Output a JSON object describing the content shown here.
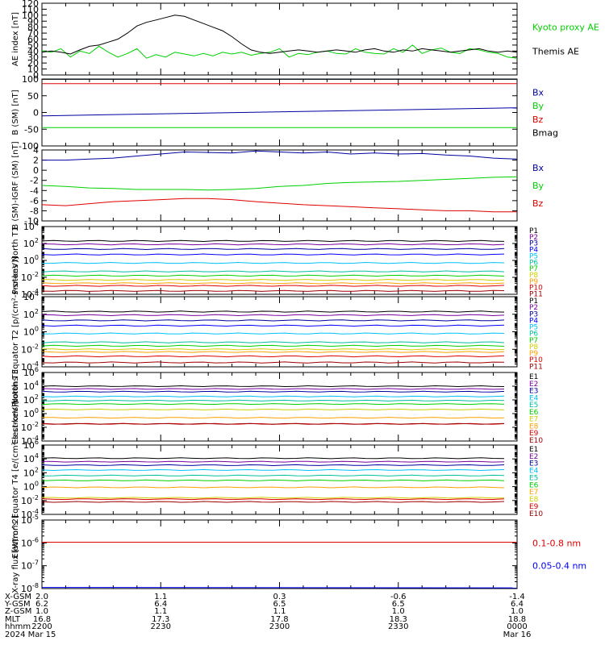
{
  "colors": {
    "black": "#000000",
    "navy": "#0000a0",
    "purple": "#7a00a0",
    "blue": "#0000ff",
    "cyan": "#00c0ff",
    "teal": "#00c0a0",
    "green": "#00d000",
    "yellow": "#d0d000",
    "orange": "#ffa000",
    "red": "#e00000",
    "darkred": "#a00000"
  },
  "chart_data": [
    {
      "type": "line",
      "panel": "ae",
      "ylabel": "AE index [nT]",
      "ylim": [
        0,
        120
      ],
      "yticks": [
        0,
        10,
        20,
        30,
        40,
        50,
        60,
        70,
        80,
        90,
        100,
        110,
        120
      ],
      "series": [
        {
          "name": "Kyoto proxy AE",
          "color": "green",
          "x": [
            0,
            2,
            4,
            6,
            8,
            10,
            12,
            14,
            16,
            18,
            20,
            22,
            24,
            26,
            28,
            30,
            32,
            34,
            36,
            38,
            40,
            42,
            44,
            46,
            48,
            50,
            52,
            54,
            56,
            58,
            60,
            62,
            64,
            66,
            68,
            70,
            72,
            74,
            76,
            78,
            80,
            82,
            84,
            86,
            88,
            90,
            92,
            94,
            96,
            98,
            100
          ],
          "values": [
            40,
            38,
            44,
            30,
            40,
            36,
            48,
            38,
            30,
            36,
            44,
            28,
            34,
            30,
            38,
            35,
            32,
            36,
            32,
            38,
            35,
            38,
            33,
            36,
            38,
            44,
            30,
            36,
            34,
            38,
            40,
            36,
            35,
            44,
            38,
            36,
            35,
            44,
            38,
            50,
            36,
            42,
            45,
            38,
            36,
            44,
            42,
            38,
            36,
            30,
            28
          ]
        },
        {
          "name": "Themis AE",
          "color": "black",
          "x": [
            0,
            2,
            4,
            6,
            8,
            10,
            12,
            14,
            16,
            18,
            20,
            22,
            24,
            26,
            28,
            30,
            32,
            34,
            36,
            38,
            40,
            42,
            44,
            46,
            48,
            50,
            52,
            54,
            56,
            58,
            60,
            62,
            64,
            66,
            68,
            70,
            72,
            74,
            76,
            78,
            80,
            82,
            84,
            86,
            88,
            90,
            92,
            94,
            96,
            98,
            100
          ],
          "values": [
            38,
            40,
            38,
            35,
            42,
            48,
            50,
            55,
            60,
            70,
            82,
            88,
            92,
            96,
            100,
            98,
            92,
            86,
            80,
            74,
            64,
            52,
            42,
            38,
            36,
            38,
            40,
            42,
            40,
            38,
            40,
            42,
            40,
            38,
            42,
            44,
            40,
            38,
            42,
            40,
            44,
            42,
            40,
            38,
            40,
            42,
            44,
            40,
            38,
            40,
            38
          ]
        }
      ],
      "legend": [
        "Kyoto proxy AE",
        "Themis AE"
      ]
    },
    {
      "type": "line",
      "panel": "bsm",
      "ylabel": "B (SM) [nT]",
      "ylim": [
        -100,
        100
      ],
      "yticks": [
        -100,
        -50,
        0,
        50,
        100
      ],
      "series": [
        {
          "name": "Bx",
          "color": "navy",
          "x": [
            0,
            100
          ],
          "values": [
            -10,
            14
          ]
        },
        {
          "name": "By",
          "color": "green",
          "x": [
            0,
            100
          ],
          "values": [
            -45,
            -45
          ]
        },
        {
          "name": "Bz",
          "color": "red",
          "x": [
            0,
            100
          ],
          "values": [
            86,
            86
          ]
        },
        {
          "name": "Bmag",
          "color": "black",
          "x": [
            0,
            100
          ],
          "values": [
            99,
            99
          ]
        }
      ],
      "legend": [
        "Bx",
        "By",
        "Bz",
        "Bmag"
      ]
    },
    {
      "type": "line",
      "panel": "bigrf",
      "ylabel": "B (SM)-IGRF (SM) [nT]",
      "ylim": [
        -10,
        4
      ],
      "yticks": [
        -10,
        -8,
        -6,
        -4,
        -2,
        0,
        2,
        4
      ],
      "series": [
        {
          "name": "Bx",
          "color": "navy",
          "x": [
            0,
            5,
            10,
            15,
            20,
            25,
            30,
            35,
            40,
            45,
            50,
            55,
            60,
            65,
            70,
            75,
            80,
            85,
            90,
            95,
            100
          ],
          "values": [
            2,
            2,
            2.2,
            2.4,
            2.8,
            3.2,
            3.6,
            3.5,
            3.4,
            3.8,
            3.6,
            3.4,
            3.6,
            3.2,
            3.4,
            3.2,
            3.3,
            3.0,
            2.8,
            2.4,
            2.2
          ]
        },
        {
          "name": "By",
          "color": "green",
          "x": [
            0,
            5,
            10,
            15,
            20,
            25,
            30,
            35,
            40,
            45,
            50,
            55,
            60,
            65,
            70,
            75,
            80,
            85,
            90,
            95,
            100
          ],
          "values": [
            -3,
            -3.2,
            -3.5,
            -3.6,
            -3.8,
            -3.8,
            -3.8,
            -3.9,
            -3.8,
            -3.6,
            -3.2,
            -3,
            -2.6,
            -2.4,
            -2.3,
            -2.2,
            -2,
            -1.8,
            -1.6,
            -1.4,
            -1.3
          ]
        },
        {
          "name": "Bz",
          "color": "red",
          "x": [
            0,
            5,
            10,
            15,
            20,
            25,
            30,
            35,
            40,
            45,
            50,
            55,
            60,
            65,
            70,
            75,
            80,
            85,
            90,
            95,
            100
          ],
          "values": [
            -6.8,
            -7,
            -6.6,
            -6.2,
            -6,
            -5.8,
            -5.6,
            -5.6,
            -5.8,
            -6.2,
            -6.5,
            -6.8,
            -7,
            -7.2,
            -7.4,
            -7.6,
            -7.8,
            -8,
            -8,
            -8.2,
            -8.2
          ]
        }
      ],
      "legend": [
        "Bx",
        "By",
        "Bz"
      ]
    },
    {
      "type": "line",
      "panel": "p_north",
      "scale": "log",
      "ylabel": "Protons North T1",
      "ylim_exp": [
        -4,
        4
      ],
      "yticks_exp": [
        -4,
        -2,
        0,
        2,
        4
      ],
      "series": [
        {
          "name": "P1",
          "color": "black",
          "level": 2.3
        },
        {
          "name": "P2",
          "color": "purple",
          "level": 1.9
        },
        {
          "name": "P3",
          "color": "navy",
          "level": 1.35
        },
        {
          "name": "P4",
          "color": "blue",
          "level": 0.7
        },
        {
          "name": "P5",
          "color": "cyan",
          "level": -0.3
        },
        {
          "name": "P6",
          "color": "teal",
          "level": -1.3
        },
        {
          "name": "P7",
          "color": "green",
          "level": -1.8
        },
        {
          "name": "P8",
          "color": "yellow",
          "level": -2.3
        },
        {
          "name": "P9",
          "color": "orange",
          "level": -2.7
        },
        {
          "name": "P10",
          "color": "red",
          "level": -3.0
        },
        {
          "name": "P11",
          "color": "darkred",
          "level": -3.6
        }
      ],
      "legend": [
        "P1",
        "P2",
        "P3",
        "P4",
        "P5",
        "P6",
        "P7",
        "P8",
        "P9",
        "P10",
        "P11"
      ]
    },
    {
      "type": "line",
      "panel": "p_eq",
      "scale": "log",
      "ylabel": "Protons Equator T2 [p/(cm²-s-sr-keV)]",
      "ylim_exp": [
        -4,
        4
      ],
      "yticks_exp": [
        -4,
        -2,
        0,
        2,
        4
      ],
      "series": [
        {
          "name": "P1",
          "color": "black",
          "level": 2.3
        },
        {
          "name": "P2",
          "color": "purple",
          "level": 1.9
        },
        {
          "name": "P3",
          "color": "navy",
          "level": 1.3
        },
        {
          "name": "P4",
          "color": "blue",
          "level": 0.7
        },
        {
          "name": "P5",
          "color": "cyan",
          "level": -0.2
        },
        {
          "name": "P6",
          "color": "teal",
          "level": -1.2
        },
        {
          "name": "P7",
          "color": "green",
          "level": -1.6
        },
        {
          "name": "P8",
          "color": "yellow",
          "level": -2.0
        },
        {
          "name": "P9",
          "color": "orange",
          "level": -2.3
        },
        {
          "name": "P10",
          "color": "red",
          "level": -2.8
        },
        {
          "name": "P11",
          "color": "darkred",
          "level": -3.5
        }
      ],
      "legend": [
        "P1",
        "P2",
        "P3",
        "P4",
        "P5",
        "P6",
        "P7",
        "P8",
        "P9",
        "P10",
        "P11"
      ]
    },
    {
      "type": "line",
      "panel": "e_north",
      "scale": "log",
      "ylabel": "Electrons North T3",
      "ylim_exp": [
        -4,
        6
      ],
      "yticks_exp": [
        -4,
        -2,
        0,
        2,
        4,
        6
      ],
      "series": [
        {
          "name": "E1",
          "color": "black",
          "level": 4.0
        },
        {
          "name": "E2",
          "color": "purple",
          "level": 3.6
        },
        {
          "name": "E3",
          "color": "navy",
          "level": 3.2
        },
        {
          "name": "E4",
          "color": "cyan",
          "level": 2.5
        },
        {
          "name": "E5",
          "color": "teal",
          "level": 1.9
        },
        {
          "name": "E6",
          "color": "green",
          "level": 1.4
        },
        {
          "name": "E7",
          "color": "yellow",
          "level": 0.6
        },
        {
          "name": "E8",
          "color": "orange",
          "level": -0.6
        },
        {
          "name": "E9",
          "color": "red",
          "level": -1.5
        },
        {
          "name": "E10",
          "color": "darkred",
          "level": -1.5
        }
      ],
      "legend": [
        "E1",
        "E2",
        "E3",
        "E4",
        "E5",
        "E6",
        "E7",
        "E8",
        "E9",
        "E10"
      ]
    },
    {
      "type": "line",
      "panel": "e_eq",
      "scale": "log",
      "ylabel": "Electrons Equator T4 [e/(cm²-s-sr-keV)]",
      "ylim_exp": [
        -4,
        6
      ],
      "yticks_exp": [
        -4,
        -2,
        0,
        2,
        4,
        6
      ],
      "series": [
        {
          "name": "E1",
          "color": "black",
          "level": 4.1
        },
        {
          "name": "E2",
          "color": "purple",
          "level": 3.6
        },
        {
          "name": "E3",
          "color": "navy",
          "level": 3.1
        },
        {
          "name": "E4",
          "color": "cyan",
          "level": 2.4
        },
        {
          "name": "E5",
          "color": "teal",
          "level": 1.6
        },
        {
          "name": "E6",
          "color": "green",
          "level": 0.9
        },
        {
          "name": "E7",
          "color": "orange",
          "level": -0.1
        },
        {
          "name": "E8",
          "color": "yellow",
          "level": -1.6
        },
        {
          "name": "E9",
          "color": "red",
          "level": -1.8
        },
        {
          "name": "E10",
          "color": "darkred",
          "level": -2.2
        }
      ],
      "legend": [
        "E1",
        "E2",
        "E3",
        "E4",
        "E5",
        "E6",
        "E7",
        "E8",
        "E9",
        "E10"
      ]
    },
    {
      "type": "line",
      "panel": "xray",
      "scale": "log",
      "ylabel": "X-ray flux [W/m^2]",
      "ylim_exp": [
        -8,
        -5
      ],
      "yticks_exp": [
        -8,
        -7,
        -6,
        -5
      ],
      "series": [
        {
          "name": "0.1-0.8 nm",
          "color": "red",
          "x": [
            0,
            100
          ],
          "values": [
            -5.97,
            -5.97
          ]
        },
        {
          "name": "0.05-0.4 nm",
          "color": "blue",
          "x": [
            0,
            100
          ],
          "values": [
            -7.95,
            -7.97
          ]
        }
      ],
      "legend": [
        "0.1-0.8 nm",
        "0.05-0.4 nm"
      ]
    }
  ],
  "orbit_table": {
    "row_labels": [
      "X-GSM",
      "Y-GSM",
      "Z-GSM",
      "MLT",
      "hhmm",
      "2024"
    ],
    "x_ticks": [
      0,
      25,
      50,
      75,
      100
    ],
    "columns": [
      [
        "2.0",
        "6.2",
        "1.0",
        "16.8",
        "2200",
        "Mar 15"
      ],
      [
        "1.1",
        "6.4",
        "1.1",
        "17.3",
        "2230",
        ""
      ],
      [
        "0.3",
        "6.5",
        "1.1",
        "17.8",
        "2300",
        ""
      ],
      [
        "-0.6",
        "6.5",
        "1.0",
        "18.3",
        "2330",
        ""
      ],
      [
        "-1.4",
        "6.4",
        "1.0",
        "18.8",
        "0000",
        "Mar 16"
      ]
    ]
  }
}
